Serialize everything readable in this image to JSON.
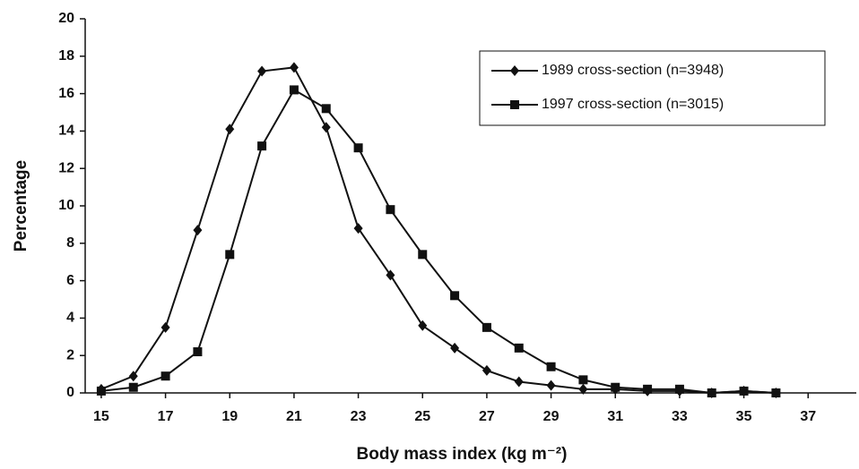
{
  "chart_data": {
    "type": "line",
    "x_label": "Body mass index (kg m⁻²)",
    "y_label": "Percentage",
    "x": [
      15,
      16,
      17,
      18,
      19,
      20,
      21,
      22,
      23,
      24,
      25,
      26,
      27,
      28,
      29,
      30,
      31,
      32,
      33,
      34,
      35,
      36
    ],
    "series": [
      {
        "name": "1989 cross-section (n=3948)",
        "color": "#111111",
        "marker": "diamond",
        "values": [
          0.2,
          0.9,
          3.5,
          8.7,
          14.1,
          17.2,
          17.4,
          14.2,
          8.8,
          6.3,
          3.6,
          2.4,
          1.2,
          0.6,
          0.4,
          0.2,
          0.2,
          0.1,
          0.1,
          0,
          0.1,
          0
        ]
      },
      {
        "name": "1997 cross-section (n=3015)",
        "color": "#111111",
        "marker": "square",
        "values": [
          0.1,
          0.3,
          0.9,
          2.2,
          7.4,
          13.2,
          16.2,
          15.2,
          13.1,
          9.8,
          7.4,
          5.2,
          3.5,
          2.4,
          1.4,
          0.7,
          0.3,
          0.2,
          0.2,
          0,
          0.1,
          0
        ]
      }
    ],
    "xlim": [
      14.5,
      38.5
    ],
    "xticks": [
      15,
      17,
      19,
      21,
      23,
      25,
      27,
      29,
      31,
      33,
      35,
      37
    ],
    "ylim": [
      0,
      20
    ],
    "yticks": [
      0,
      2,
      4,
      6,
      8,
      10,
      12,
      14,
      16,
      18,
      20
    ],
    "grid": false,
    "legend": "upper right"
  }
}
